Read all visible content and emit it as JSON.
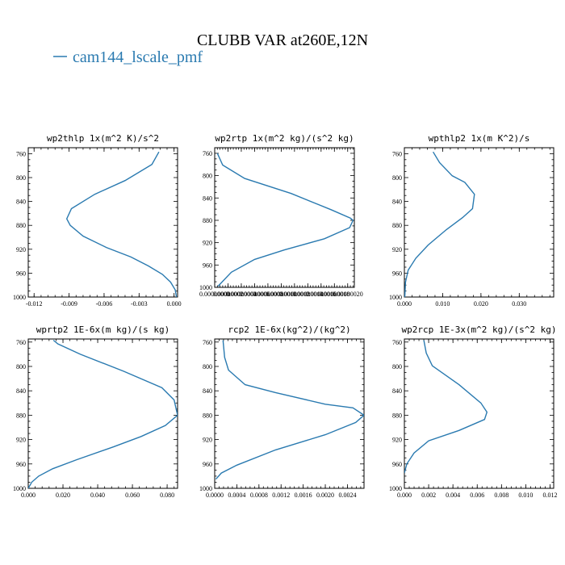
{
  "figure": {
    "title": "CLUBB VAR at260E,12N",
    "legend": {
      "label": "cam144_lscale_pmf",
      "color": "#2a7ab0"
    }
  },
  "chart_data": [
    {
      "type": "line",
      "title": "wp2thlp  1x(m^2 K)/s^2",
      "xlim": [
        -0.0125,
        0.0003
      ],
      "ylim": [
        1000,
        750
      ],
      "xticks": [
        -0.012,
        -0.009,
        -0.006,
        -0.003,
        0.0
      ],
      "xtick_labels": [
        "-0.012",
        "-0.009",
        "-0.006",
        "-0.003",
        "0.000"
      ],
      "yticks": [
        760,
        800,
        840,
        880,
        920,
        960,
        1000
      ],
      "series": [
        {
          "color": "#2a7ab0",
          "x": [
            -0.0013,
            -0.0019,
            -0.0042,
            -0.0068,
            -0.0088,
            -0.0092,
            -0.0089,
            -0.0078,
            -0.0058,
            -0.0037,
            -0.0022,
            -0.001,
            -0.0003,
            0.0001,
            0.0002
          ],
          "y": [
            757,
            778,
            805,
            828,
            852,
            869,
            880,
            898,
            917,
            933,
            948,
            962,
            975,
            988,
            1000
          ]
        }
      ]
    },
    {
      "type": "line",
      "title": "wp2rtp  1x(m^2 kg)/(s^2 kg)",
      "xlim": [
        0.0,
        2.1e-07
      ],
      "ylim": [
        1000,
        750
      ],
      "xticks": [
        0.0,
        2e-08,
        4e-08,
        6e-08,
        8e-08,
        1e-07,
        1.2e-07,
        1.4e-07,
        1.6e-07,
        1.8e-07,
        2e-07
      ],
      "xtick_labels": [
        "0.00000000",
        "0.00000002",
        "0.00000004",
        "0.00000006",
        "0.00000008",
        "0.00000010",
        "0.00000012",
        "0.00000014",
        "0.00000016",
        "0.00000018",
        "0.00000020"
      ],
      "yticks": [
        760,
        800,
        840,
        880,
        920,
        960,
        1000
      ],
      "series": [
        {
          "color": "#2a7ab0",
          "x": [
            4e-09,
            1.2e-08,
            4.5e-08,
            1.15e-07,
            1.75e-07,
            2.04e-07,
            2.08e-07,
            2.03e-07,
            1.65e-07,
            1.05e-07,
            6e-08,
            2.5e-08,
            5e-09
          ],
          "y": [
            760,
            781,
            805,
            832,
            861,
            876,
            880,
            893,
            913,
            933,
            950,
            973,
            998
          ]
        }
      ]
    },
    {
      "type": "line",
      "title": "wpthlp2  1x(m K^2)/s",
      "xlim": [
        0.0,
        0.039
      ],
      "ylim": [
        1000,
        750
      ],
      "xticks": [
        0.0,
        0.01,
        0.02,
        0.03
      ],
      "xtick_labels": [
        "0.000",
        "0.010",
        "0.020",
        "0.030"
      ],
      "yticks": [
        760,
        800,
        840,
        880,
        920,
        960,
        1000
      ],
      "series": [
        {
          "color": "#2a7ab0",
          "x": [
            0.0075,
            0.0092,
            0.0125,
            0.0158,
            0.0183,
            0.0178,
            0.0152,
            0.011,
            0.0062,
            0.003,
            0.001,
            0.0003,
            0.0001
          ],
          "y": [
            757,
            775,
            797,
            808,
            828,
            852,
            867,
            887,
            913,
            935,
            955,
            975,
            1000
          ]
        }
      ]
    },
    {
      "type": "line",
      "title": "wprtp2  1E-6x(m kg)/(s kg)",
      "xlim": [
        0.0,
        0.086
      ],
      "ylim": [
        1000,
        755
      ],
      "xticks": [
        0.0,
        0.02,
        0.04,
        0.06,
        0.08
      ],
      "xtick_labels": [
        "0.000",
        "0.020",
        "0.040",
        "0.060",
        "0.080"
      ],
      "yticks": [
        760,
        800,
        840,
        880,
        920,
        960,
        1000
      ],
      "series": [
        {
          "color": "#2a7ab0",
          "x": [
            0.0145,
            0.017,
            0.03,
            0.055,
            0.077,
            0.084,
            0.086,
            0.079,
            0.065,
            0.049,
            0.028,
            0.014,
            0.006,
            0.002,
            0.0
          ],
          "y": [
            757,
            763,
            780,
            808,
            835,
            855,
            880,
            897,
            915,
            932,
            953,
            968,
            980,
            990,
            1000
          ]
        }
      ]
    },
    {
      "type": "line",
      "title": "rcp2  1E-6x(kg^2)/(kg^2)",
      "xlim": [
        0.0,
        0.0027
      ],
      "ylim": [
        1000,
        755
      ],
      "xticks": [
        0.0,
        0.0004,
        0.0008,
        0.0012,
        0.0016,
        0.002,
        0.0024
      ],
      "xtick_labels": [
        "0.0000",
        "0.0004",
        "0.0008",
        "0.0012",
        "0.0016",
        "0.0020",
        "0.0024"
      ],
      "yticks": [
        760,
        800,
        840,
        880,
        920,
        960,
        1000
      ],
      "series": [
        {
          "color": "#2a7ab0",
          "x": [
            0.00015,
            0.00018,
            0.00025,
            0.00055,
            0.0011,
            0.002,
            0.0025,
            0.0027,
            0.00255,
            0.002,
            0.0011,
            0.0004,
            0.00012,
            2e-05
          ],
          "y": [
            757,
            785,
            806,
            830,
            843,
            862,
            868,
            880,
            892,
            912,
            937,
            962,
            975,
            985
          ]
        }
      ]
    },
    {
      "type": "line",
      "title": "wp2rcp  1E-3x(m^2 kg)/(s^2 kg)",
      "xlim": [
        0.0,
        0.0123
      ],
      "ylim": [
        1000,
        755
      ],
      "xticks": [
        0.0,
        0.002,
        0.004,
        0.006,
        0.008,
        0.01,
        0.012
      ],
      "xtick_labels": [
        "0.000",
        "0.002",
        "0.004",
        "0.006",
        "0.008",
        "0.010",
        "0.012"
      ],
      "yticks": [
        760,
        800,
        840,
        880,
        920,
        960,
        1000
      ],
      "series": [
        {
          "color": "#2a7ab0",
          "x": [
            0.0016,
            0.0018,
            0.0023,
            0.0045,
            0.0063,
            0.0068,
            0.0066,
            0.0045,
            0.002,
            0.0008,
            0.0002,
            0.0
          ],
          "y": [
            757,
            778,
            799,
            830,
            860,
            875,
            887,
            905,
            922,
            942,
            960,
            975
          ]
        }
      ]
    }
  ]
}
